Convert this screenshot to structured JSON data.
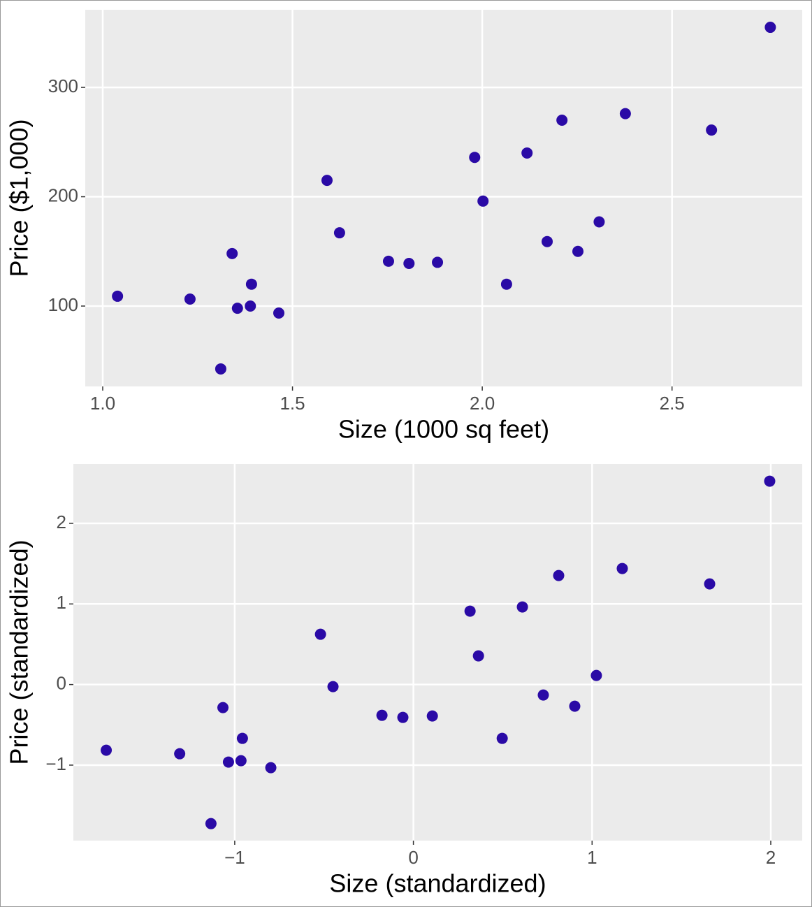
{
  "chart_data": [
    {
      "type": "scatter",
      "x_label": "Size (1000 sq feet)",
      "y_label": "Price ($1,000)",
      "color": "#2a0aa6",
      "grid": true,
      "xlim": [
        0.954,
        2.843
      ],
      "ylim": [
        26.5,
        371
      ],
      "xticks": [
        {
          "value": 1.0,
          "label": "1.0"
        },
        1.5,
        {
          "value": 2.0,
          "label": "2.0"
        },
        2.5
      ],
      "yticks": [
        100,
        200,
        300
      ],
      "x": [
        1.039,
        1.23,
        1.311,
        1.341,
        1.355,
        1.389,
        1.392,
        1.464,
        1.591,
        1.624,
        1.753,
        1.807,
        1.882,
        1.98,
        2.002,
        2.064,
        2.118,
        2.171,
        2.21,
        2.252,
        2.308,
        2.377,
        2.604,
        2.759
      ],
      "y": [
        109,
        106.4,
        42.5,
        148,
        98,
        100,
        120,
        93.6,
        215,
        167,
        141,
        139,
        140,
        236,
        196,
        120,
        240,
        159,
        270,
        150,
        177,
        276,
        261,
        355
      ]
    },
    {
      "type": "scatter",
      "x_label": "Size (standardized)",
      "y_label": "Price (standardized)",
      "color": "#2a0aa6",
      "grid": true,
      "xlim": [
        -1.903,
        2.176
      ],
      "ylim": [
        -1.937,
        2.737
      ],
      "xticks": [
        {
          "value": -1,
          "label": "−1"
        },
        0,
        1,
        2
      ],
      "yticks": [
        {
          "value": -1,
          "label": "−1"
        },
        0,
        1,
        2
      ],
      "x": [
        -1.719,
        -1.308,
        -1.133,
        -1.066,
        -1.035,
        -0.965,
        -0.957,
        -0.798,
        -0.52,
        -0.45,
        -0.176,
        -0.059,
        0.106,
        0.317,
        0.364,
        0.497,
        0.61,
        0.727,
        0.813,
        0.903,
        1.024,
        1.169,
        1.658,
        1.994
      ],
      "y": [
        -0.815,
        -0.859,
        -1.726,
        -0.286,
        -0.962,
        -0.945,
        -0.668,
        -1.032,
        0.624,
        -0.026,
        -0.382,
        -0.408,
        -0.39,
        0.911,
        0.356,
        -0.668,
        0.963,
        -0.13,
        1.353,
        -0.269,
        0.113,
        1.44,
        1.249,
        2.524
      ]
    }
  ]
}
